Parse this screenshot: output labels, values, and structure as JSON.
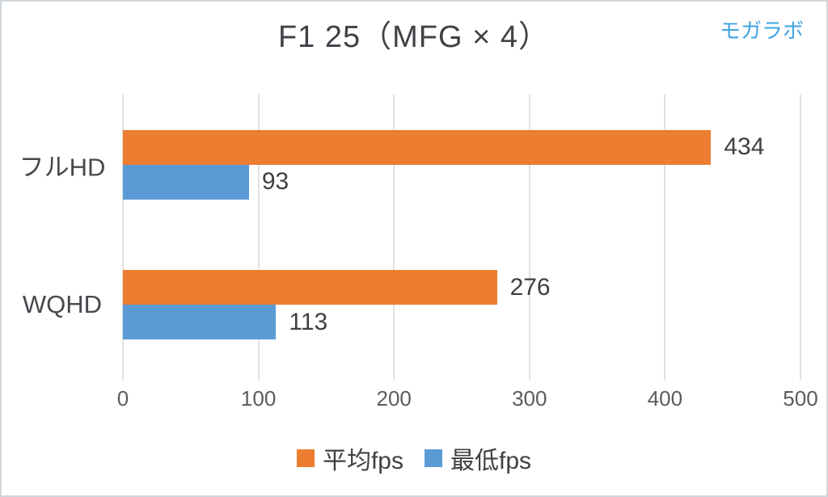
{
  "brand": "モガラボ",
  "colors": {
    "average_series": "#ED7D31",
    "minimum_series": "#5B9BD5",
    "brand_text": "#41A4E5",
    "gridline": "#C3C6C9",
    "value_text": "#404040",
    "tick_text": "#595C5F"
  },
  "chart_data": {
    "type": "bar",
    "orientation": "horizontal",
    "title": "F1 25（MFG × 4）",
    "categories": [
      "フルHD",
      "WQHD"
    ],
    "series": [
      {
        "name": "平均fps",
        "color": "#ED7D31",
        "values": [
          434,
          276
        ]
      },
      {
        "name": "最低fps",
        "color": "#5B9BD5",
        "values": [
          93,
          113
        ]
      }
    ],
    "xlim": [
      0,
      500
    ],
    "xticks": [
      0,
      100,
      200,
      300,
      400,
      500
    ],
    "grid": "vertical",
    "legend_position": "bottom",
    "value_labels": true
  }
}
